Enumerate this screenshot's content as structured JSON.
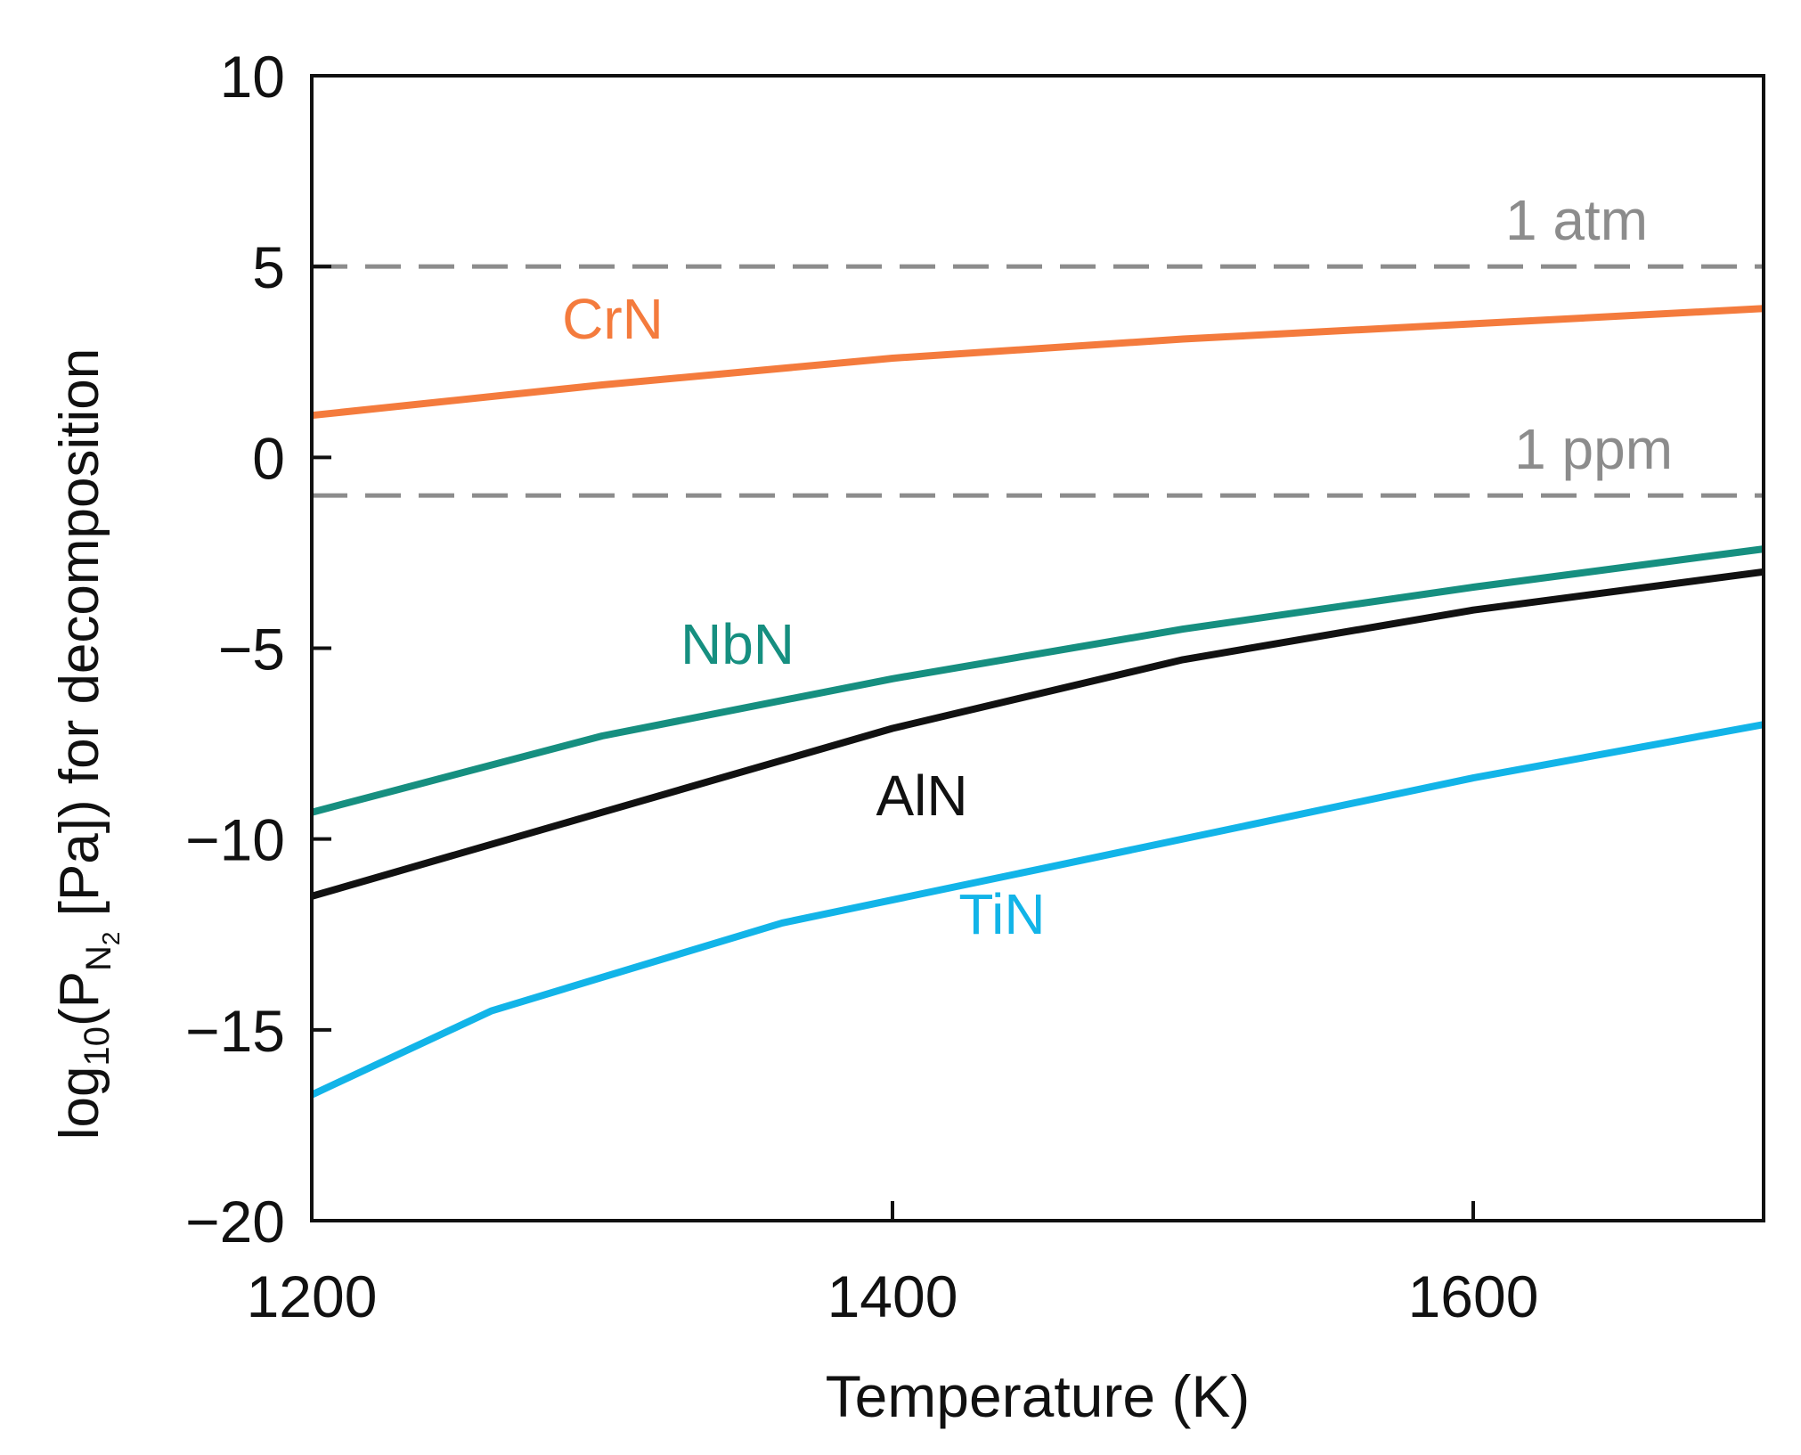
{
  "chart_data": {
    "type": "line",
    "xlabel": "Temperature (K)",
    "ylabel": {
      "prefix": "log",
      "prefix_sub": "10",
      "open": "(P",
      "sub": "N",
      "sub_sub": "2",
      "rest": " [Pa]) for decomposition"
    },
    "xlim": [
      1200,
      1700
    ],
    "ylim": [
      -20,
      10
    ],
    "xticks": [
      1200,
      1400,
      1600
    ],
    "yticks": [
      10,
      5,
      0,
      -5,
      -10,
      -15,
      -20
    ],
    "xtick_labels": [
      "1200",
      "1400",
      "1600"
    ],
    "ytick_labels": [
      "10",
      "5",
      "0",
      "−5",
      "−10",
      "−15",
      "−20"
    ],
    "grid": false,
    "reference_lines": [
      {
        "label": "1 atm",
        "y": 5.0,
        "color": "#8c8c8c",
        "style": "dashed"
      },
      {
        "label": "1 ppm",
        "y": -1.0,
        "color": "#8c8c8c",
        "style": "dashed"
      }
    ],
    "series": [
      {
        "name": "CrN",
        "color": "#f47b3d",
        "x": [
          1200,
          1300,
          1400,
          1500,
          1600,
          1700
        ],
        "y": [
          1.1,
          1.9,
          2.6,
          3.1,
          3.5,
          3.9
        ]
      },
      {
        "name": "NbN",
        "color": "#168f80",
        "x": [
          1200,
          1300,
          1400,
          1500,
          1600,
          1700
        ],
        "y": [
          -9.3,
          -7.3,
          -5.8,
          -4.5,
          -3.4,
          -2.4
        ]
      },
      {
        "name": "AlN",
        "color": "#111111",
        "x": [
          1200,
          1300,
          1400,
          1500,
          1600,
          1700
        ],
        "y": [
          -11.5,
          -9.3,
          -7.1,
          -5.3,
          -4.0,
          -3.0
        ]
      },
      {
        "name": "TiN",
        "color": "#12b4e8",
        "x": [
          1200,
          1262,
          1362,
          1450,
          1600,
          1700
        ],
        "y": [
          -16.7,
          -14.5,
          -12.2,
          -10.8,
          -8.4,
          -7.0
        ]
      }
    ]
  }
}
